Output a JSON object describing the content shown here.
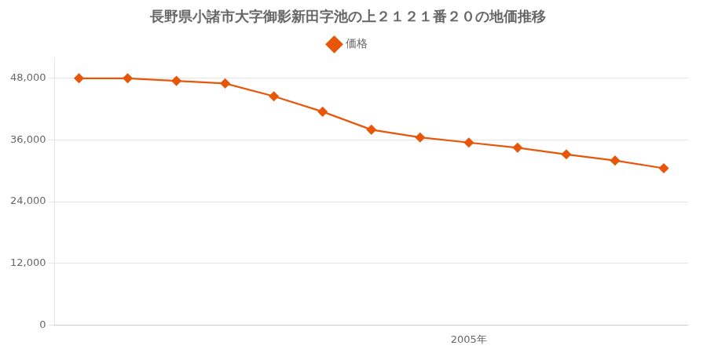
{
  "chart_data": {
    "type": "line",
    "title": "長野県小諸市大字御影新田字池の上２１２１番２０の地価推移",
    "x": [
      1997,
      1998,
      1999,
      2000,
      2001,
      2002,
      2003,
      2004,
      2005,
      2006,
      2007,
      2008,
      2009
    ],
    "series": [
      {
        "name": "価格",
        "color": "#E8560A",
        "marker": "diamond",
        "line_style": "solid",
        "values": [
          48000,
          48000,
          47500,
          47000,
          44500,
          41500,
          38000,
          36500,
          35500,
          34500,
          33200,
          32000,
          30500
        ]
      }
    ],
    "xlim": [
      1996.5,
      2009.5
    ],
    "xticks": [
      {
        "value": 2005,
        "label": "2005年"
      }
    ],
    "ylim": [
      0,
      52000
    ],
    "yticks": [
      0,
      {
        "value": 12000,
        "label": "12,000"
      },
      {
        "value": 24000,
        "label": "24,000"
      },
      {
        "value": 36000,
        "label": "36,000"
      },
      {
        "value": 48000,
        "label": "48,000"
      }
    ],
    "grid": true,
    "legend": "top"
  }
}
